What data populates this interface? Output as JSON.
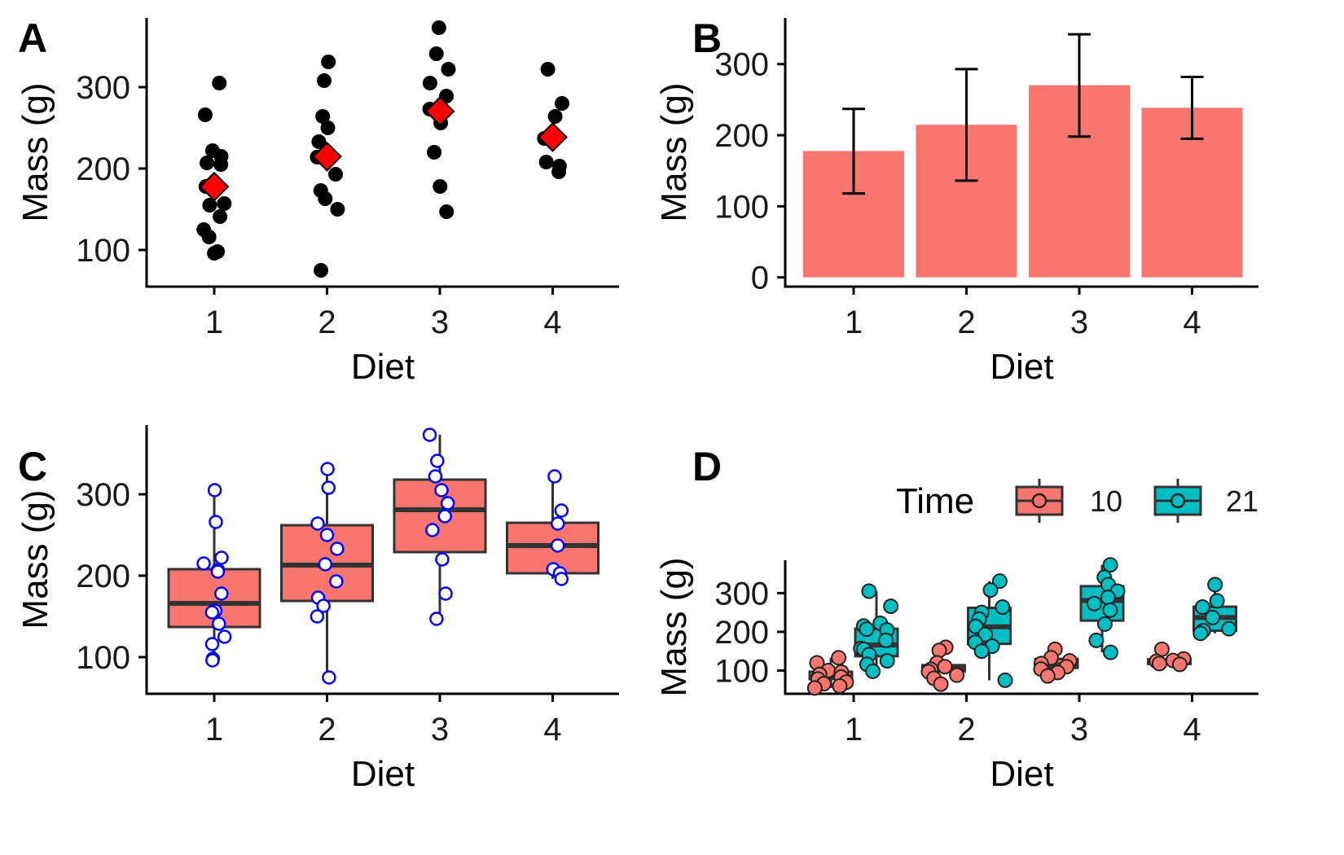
{
  "colors": {
    "bar_fill": "#F8766D",
    "box_fill": "#F8766D",
    "time10": "#F8766D",
    "time21": "#00BFC4",
    "mean_marker": "#FF0000",
    "open_points": "#0000FF",
    "axis": "#000000"
  },
  "chart_data": [
    {
      "panel": "A",
      "type": "scatter",
      "xlabel": "Diet",
      "ylabel": "Mass (g)",
      "categories": [
        "1",
        "2",
        "3",
        "4"
      ],
      "ylim": [
        55,
        385
      ],
      "yticks": [
        100,
        200,
        300
      ],
      "points": [
        [
          305,
          266,
          222,
          215,
          207,
          205,
          178,
          157,
          155,
          141,
          125,
          116,
          98,
          96
        ],
        [
          331,
          308,
          264,
          250,
          233,
          214,
          193,
          173,
          163,
          150,
          75
        ],
        [
          373,
          341,
          322,
          305,
          289,
          273,
          256,
          220,
          178,
          147
        ],
        [
          322,
          280,
          264,
          237,
          208,
          203,
          196
        ]
      ],
      "means": [
        177.8,
        214.7,
        270.3,
        238.6
      ]
    },
    {
      "panel": "B",
      "type": "bar",
      "xlabel": "Diet",
      "ylabel": "Mass (g)",
      "categories": [
        "1",
        "2",
        "3",
        "4"
      ],
      "values": [
        177.8,
        214.7,
        270.3,
        238.6
      ],
      "err_low": [
        118,
        136,
        198,
        195
      ],
      "err_high": [
        237,
        293,
        342,
        282
      ],
      "ylim": [
        -13,
        365
      ],
      "yticks": [
        0,
        100,
        200,
        300
      ]
    },
    {
      "panel": "C",
      "type": "box",
      "xlabel": "Diet",
      "ylabel": "Mass (g)",
      "categories": [
        "1",
        "2",
        "3",
        "4"
      ],
      "ylim": [
        55,
        385
      ],
      "yticks": [
        100,
        200,
        300
      ],
      "boxes": [
        {
          "min": 96,
          "q1": 137,
          "median": 166,
          "q3": 208,
          "max": 305
        },
        {
          "min": 75,
          "q1": 169,
          "median": 213,
          "q3": 262,
          "max": 331
        },
        {
          "min": 147,
          "q1": 229,
          "median": 281,
          "q3": 318,
          "max": 373
        },
        {
          "min": 196,
          "q1": 203,
          "median": 237,
          "q3": 265,
          "max": 322
        }
      ],
      "points": [
        [
          305,
          266,
          222,
          215,
          207,
          205,
          178,
          157,
          155,
          141,
          125,
          116,
          98,
          96
        ],
        [
          331,
          308,
          264,
          250,
          233,
          214,
          193,
          173,
          163,
          150,
          75
        ],
        [
          373,
          341,
          322,
          305,
          289,
          273,
          256,
          220,
          178,
          147
        ],
        [
          322,
          280,
          264,
          237,
          208,
          203,
          196
        ]
      ]
    },
    {
      "panel": "D",
      "type": "box",
      "xlabel": "Diet",
      "ylabel": "Mass (g)",
      "legend_title": "Time",
      "legend_placement": "top",
      "categories": [
        "1",
        "2",
        "3",
        "4"
      ],
      "ylim": [
        40,
        385
      ],
      "yticks": [
        100,
        200,
        300
      ],
      "series": [
        {
          "name": "10",
          "boxes": [
            {
              "min": 55,
              "q1": 78,
              "median": 84,
              "q3": 97,
              "max": 133
            },
            {
              "min": 90,
              "q1": 98,
              "median": 107,
              "q3": 114,
              "max": 120
            },
            {
              "min": 86,
              "q1": 107,
              "median": 115,
              "q3": 130,
              "max": 155
            },
            {
              "min": 115,
              "q1": 117,
              "median": 124,
              "q3": 129,
              "max": 132
            }
          ],
          "points": [
            [
              133,
              120,
              100,
              96,
              90,
              83,
              78,
              70,
              66,
              60,
              55
            ],
            [
              160,
              152,
              120,
              110,
              103,
              97,
              88,
              80,
              65
            ],
            [
              155,
              133,
              125,
              118,
              110,
              104,
              95,
              86
            ],
            [
              155,
              130,
              126,
              124,
              118,
              116
            ]
          ]
        },
        {
          "name": "21",
          "boxes": [
            {
              "min": 96,
              "q1": 137,
              "median": 166,
              "q3": 208,
              "max": 305
            },
            {
              "min": 75,
              "q1": 169,
              "median": 213,
              "q3": 262,
              "max": 331
            },
            {
              "min": 147,
              "q1": 229,
              "median": 281,
              "q3": 318,
              "max": 373
            },
            {
              "min": 196,
              "q1": 203,
              "median": 237,
              "q3": 265,
              "max": 322
            }
          ],
          "points": [
            [
              305,
              266,
              222,
              215,
              207,
              205,
              178,
              157,
              155,
              141,
              125,
              116,
              98
            ],
            [
              331,
              308,
              264,
              250,
              233,
              214,
              193,
              173,
              163,
              150,
              75
            ],
            [
              373,
              341,
              322,
              305,
              289,
              273,
              256,
              220,
              178,
              147
            ],
            [
              322,
              280,
              264,
              237,
              208,
              203,
              196
            ]
          ]
        }
      ]
    }
  ]
}
